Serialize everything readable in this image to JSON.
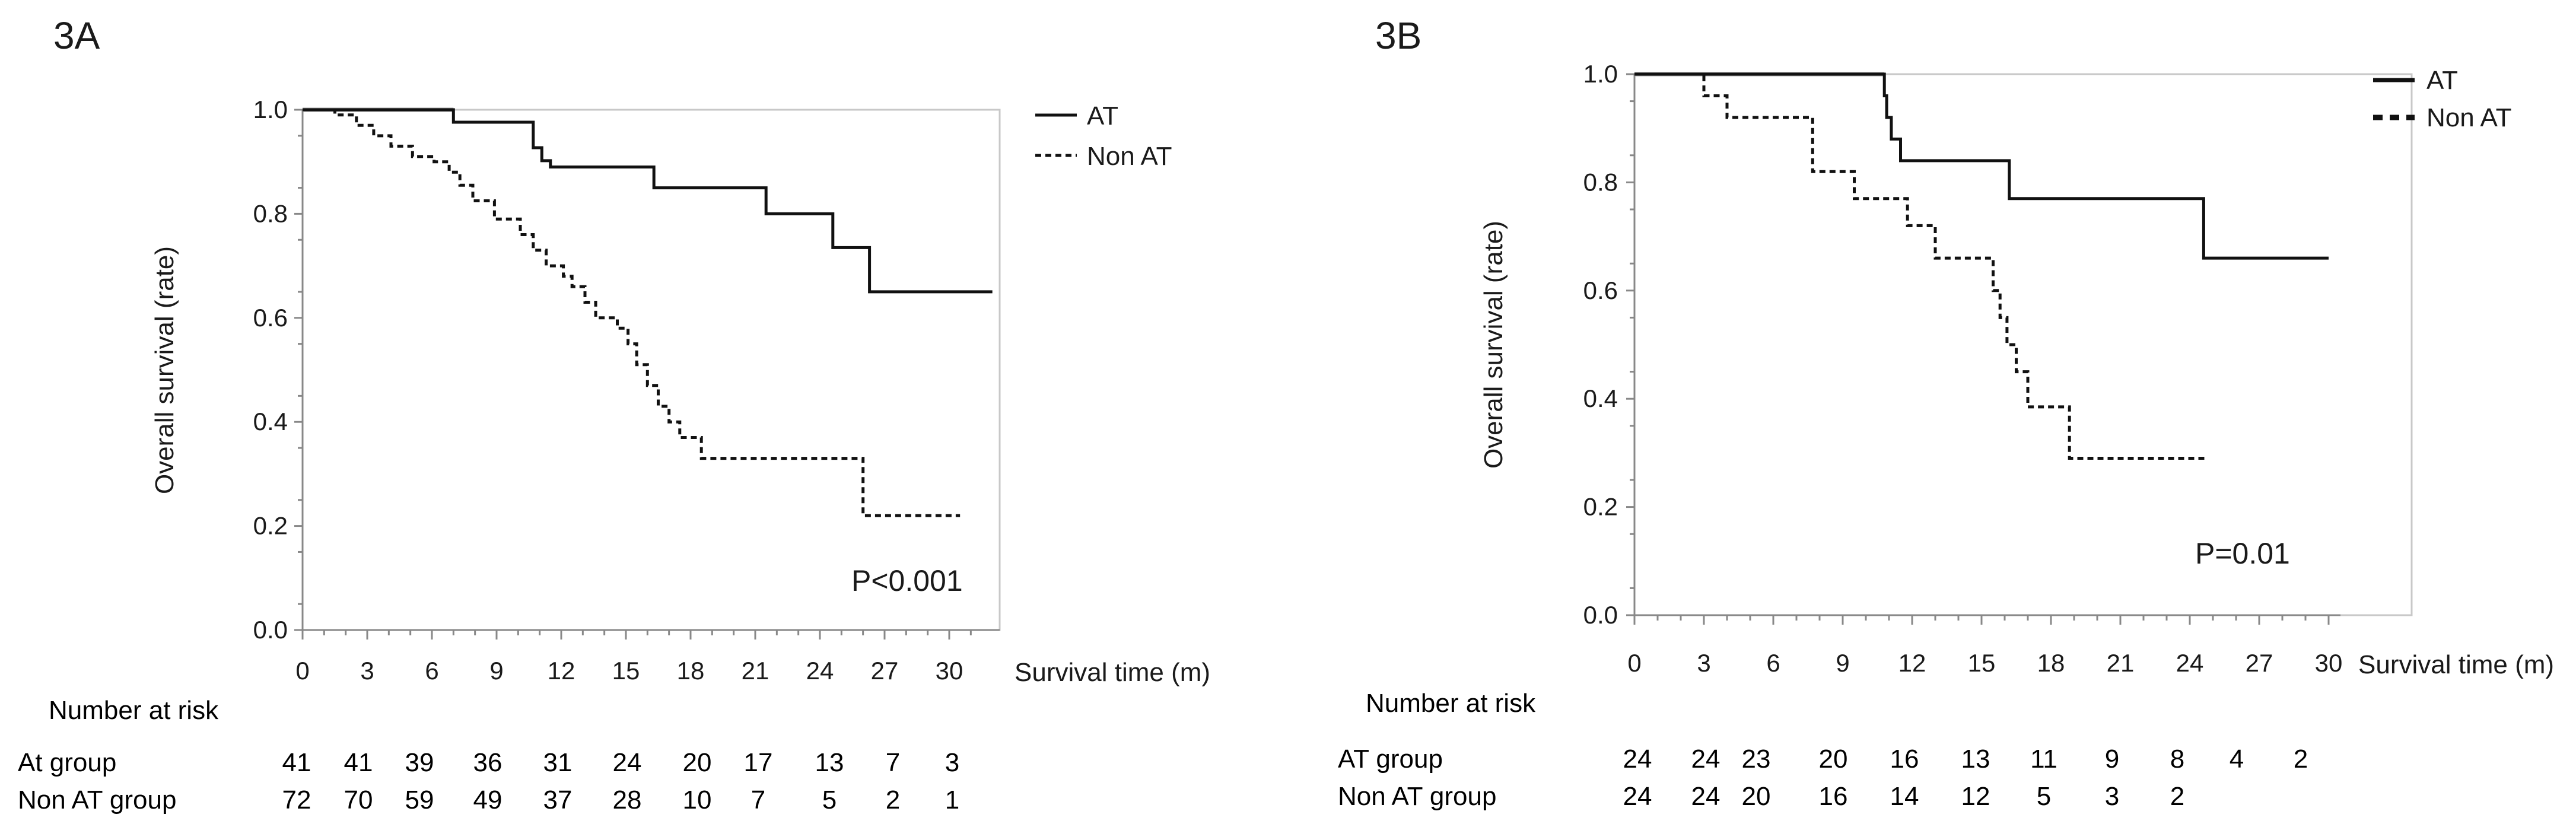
{
  "panels": [
    {
      "label": "3A",
      "chart_data": {
        "type": "line",
        "title": "",
        "ylabel": "Overall survival (rate)",
        "xlabel": "Survival time (m)",
        "xlim": [
          0,
          32
        ],
        "ylim": [
          0,
          1.0
        ],
        "xticks": [
          "0",
          "3",
          "6",
          "9",
          "12",
          "15",
          "18",
          "21",
          "24",
          "27",
          "30"
        ],
        "yticks": [
          "0.0",
          "0.2",
          "0.4",
          "0.6",
          "0.8",
          "1.0"
        ],
        "grid": false,
        "legend_position": "top-right outside",
        "annotation": "P<0.001",
        "series": [
          {
            "name": "AT",
            "style": "solid",
            "color": "#111111",
            "points": [
              [
                0,
                1.0
              ],
              [
                7,
                1.0
              ],
              [
                7,
                0.976
              ],
              [
                10.7,
                0.976
              ],
              [
                10.7,
                0.927
              ],
              [
                11.1,
                0.927
              ],
              [
                11.1,
                0.902
              ],
              [
                11.5,
                0.902
              ],
              [
                11.5,
                0.89
              ],
              [
                16.3,
                0.89
              ],
              [
                16.3,
                0.85
              ],
              [
                21.5,
                0.85
              ],
              [
                21.5,
                0.8
              ],
              [
                24.6,
                0.8
              ],
              [
                24.6,
                0.735
              ],
              [
                26.3,
                0.735
              ],
              [
                26.3,
                0.65
              ],
              [
                32,
                0.65
              ]
            ]
          },
          {
            "name": "Non AT",
            "style": "dashed",
            "color": "#111111",
            "points": [
              [
                0,
                1.0
              ],
              [
                1.5,
                1.0
              ],
              [
                1.5,
                0.99
              ],
              [
                2.5,
                0.99
              ],
              [
                2.5,
                0.97
              ],
              [
                3.3,
                0.97
              ],
              [
                3.3,
                0.95
              ],
              [
                4.1,
                0.95
              ],
              [
                4.1,
                0.93
              ],
              [
                5.1,
                0.93
              ],
              [
                5.1,
                0.91
              ],
              [
                6.1,
                0.91
              ],
              [
                6.1,
                0.9
              ],
              [
                6.8,
                0.9
              ],
              [
                6.8,
                0.88
              ],
              [
                7.3,
                0.88
              ],
              [
                7.3,
                0.855
              ],
              [
                7.9,
                0.855
              ],
              [
                7.9,
                0.825
              ],
              [
                8.9,
                0.825
              ],
              [
                8.9,
                0.79
              ],
              [
                10.1,
                0.79
              ],
              [
                10.1,
                0.76
              ],
              [
                10.7,
                0.76
              ],
              [
                10.7,
                0.73
              ],
              [
                11.3,
                0.73
              ],
              [
                11.3,
                0.7
              ],
              [
                12.1,
                0.7
              ],
              [
                12.1,
                0.68
              ],
              [
                12.5,
                0.68
              ],
              [
                12.5,
                0.66
              ],
              [
                13.1,
                0.66
              ],
              [
                13.1,
                0.63
              ],
              [
                13.6,
                0.63
              ],
              [
                13.6,
                0.6
              ],
              [
                14.6,
                0.6
              ],
              [
                14.6,
                0.58
              ],
              [
                15.1,
                0.58
              ],
              [
                15.1,
                0.55
              ],
              [
                15.5,
                0.55
              ],
              [
                15.5,
                0.51
              ],
              [
                16.0,
                0.51
              ],
              [
                16.0,
                0.47
              ],
              [
                16.5,
                0.47
              ],
              [
                16.5,
                0.43
              ],
              [
                17.0,
                0.43
              ],
              [
                17.0,
                0.4
              ],
              [
                17.5,
                0.4
              ],
              [
                17.5,
                0.37
              ],
              [
                18.5,
                0.37
              ],
              [
                18.5,
                0.33
              ],
              [
                26.0,
                0.33
              ],
              [
                26.0,
                0.22
              ],
              [
                30.5,
                0.22
              ]
            ]
          }
        ]
      },
      "risk_table": {
        "title": "Number at risk",
        "rows": [
          {
            "label": "At group",
            "values": [
              "41",
              "41",
              "39",
              "36",
              "31",
              "24",
              "20",
              "17",
              "13",
              "7",
              "3"
            ]
          },
          {
            "label": "Non AT group",
            "values": [
              "72",
              "70",
              "59",
              "49",
              "37",
              "28",
              "10",
              "7",
              "5",
              "2",
              "1"
            ]
          }
        ]
      }
    },
    {
      "label": "3B",
      "chart_data": {
        "type": "line",
        "title": "",
        "ylabel": "Overall survival (rate)",
        "xlabel": "Survival time (m)",
        "xlim": [
          0,
          33
        ],
        "ylim": [
          0,
          1.0
        ],
        "xticks": [
          "0",
          "3",
          "6",
          "9",
          "12",
          "15",
          "18",
          "21",
          "24",
          "27",
          "30"
        ],
        "yticks": [
          "0.0",
          "0.2",
          "0.4",
          "0.6",
          "0.8",
          "1.0"
        ],
        "grid": false,
        "legend_position": "top-right outside",
        "annotation": "P=0.01",
        "series": [
          {
            "name": "AT",
            "style": "solid",
            "color": "#111111",
            "points": [
              [
                0,
                1.0
              ],
              [
                10.8,
                1.0
              ],
              [
                10.8,
                0.96
              ],
              [
                10.9,
                0.96
              ],
              [
                10.9,
                0.92
              ],
              [
                11.1,
                0.92
              ],
              [
                11.1,
                0.88
              ],
              [
                11.5,
                0.88
              ],
              [
                11.5,
                0.84
              ],
              [
                16.2,
                0.84
              ],
              [
                16.2,
                0.77
              ],
              [
                24.6,
                0.77
              ],
              [
                24.6,
                0.66
              ],
              [
                30,
                0.66
              ]
            ]
          },
          {
            "name": "Non AT",
            "style": "dashed",
            "color": "#111111",
            "points": [
              [
                0,
                1.0
              ],
              [
                3.0,
                1.0
              ],
              [
                3.0,
                0.96
              ],
              [
                4.0,
                0.96
              ],
              [
                4.0,
                0.92
              ],
              [
                7.7,
                0.92
              ],
              [
                7.7,
                0.82
              ],
              [
                9.5,
                0.82
              ],
              [
                9.5,
                0.77
              ],
              [
                11.8,
                0.77
              ],
              [
                11.8,
                0.72
              ],
              [
                13.0,
                0.72
              ],
              [
                13.0,
                0.66
              ],
              [
                15.5,
                0.66
              ],
              [
                15.5,
                0.6
              ],
              [
                15.8,
                0.6
              ],
              [
                15.8,
                0.55
              ],
              [
                16.1,
                0.55
              ],
              [
                16.1,
                0.5
              ],
              [
                16.5,
                0.5
              ],
              [
                16.5,
                0.45
              ],
              [
                17.0,
                0.45
              ],
              [
                17.0,
                0.385
              ],
              [
                18.8,
                0.385
              ],
              [
                18.8,
                0.29
              ],
              [
                24.7,
                0.29
              ]
            ]
          }
        ]
      },
      "risk_table": {
        "title": "Number at risk",
        "rows": [
          {
            "label": "AT group",
            "values": [
              "24",
              "24",
              "23",
              "20",
              "16",
              "13",
              "11",
              "9",
              "8",
              "4",
              "2"
            ]
          },
          {
            "label": "Non AT group",
            "values": [
              "24",
              "24",
              "20",
              "16",
              "14",
              "12",
              "5",
              "3",
              "2",
              "",
              ""
            ]
          }
        ]
      }
    }
  ]
}
